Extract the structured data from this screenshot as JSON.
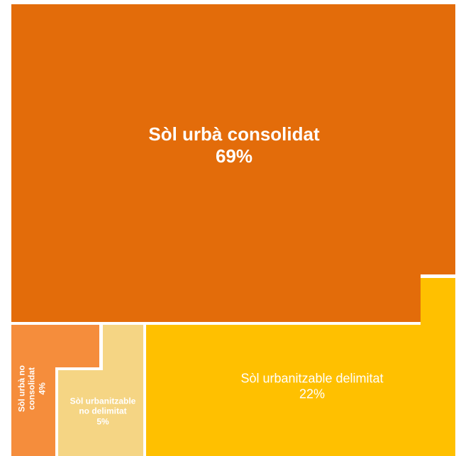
{
  "chart_data": {
    "type": "treemap",
    "categories": [
      "Sòl urbà consolidat",
      "Sòl urbà no consolidat",
      "Sòl urbanitzable no delimitat",
      "Sòl urbanitzable delimitat"
    ],
    "values": [
      69,
      4,
      5,
      22
    ],
    "value_labels": [
      "69%",
      "4%",
      "5%",
      "22%"
    ],
    "colors": [
      "#e36c0a",
      "#f58d3c",
      "#f5d584",
      "#ffc000"
    ]
  }
}
